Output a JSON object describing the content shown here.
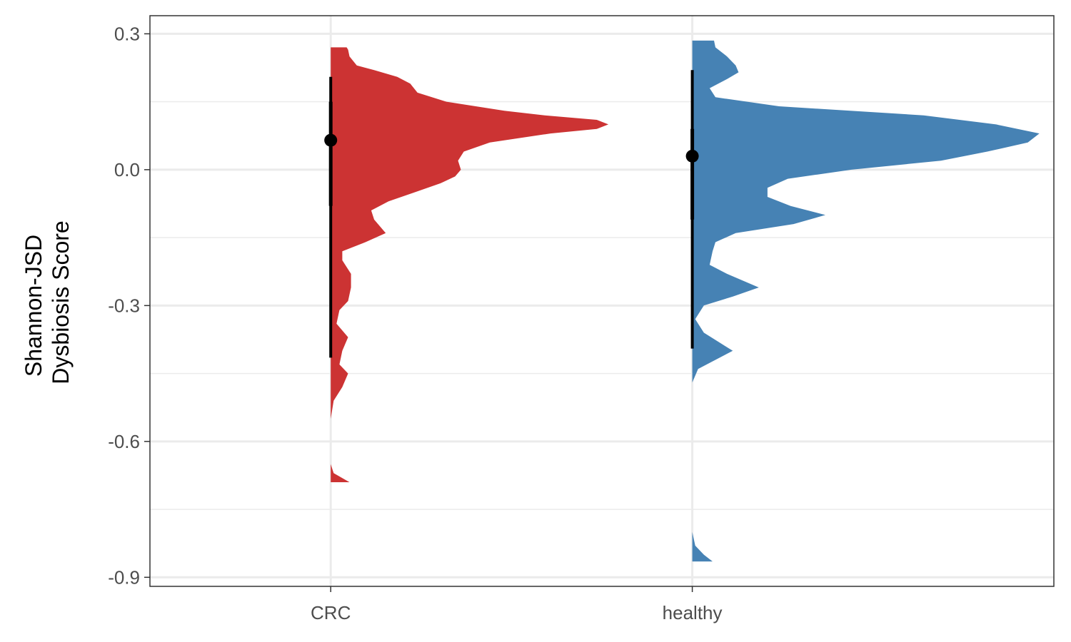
{
  "chart_data": {
    "type": "halfeye",
    "ylabel": [
      "Shannon-JSD",
      "Dysbiosis Score"
    ],
    "ylim": [
      -0.92,
      0.34
    ],
    "y_ticks": [
      0.3,
      0.0,
      -0.3,
      -0.6,
      -0.9
    ],
    "y_tick_labels": [
      "0.3",
      "0.0",
      "-0.3",
      "-0.6",
      "-0.9"
    ],
    "categories": [
      "CRC",
      "healthy"
    ],
    "groups": [
      {
        "category": "CRC",
        "color": "#CC3333",
        "median": 0.065,
        "interval_outer": [
          -0.415,
          0.205
        ],
        "interval_inner": [
          -0.08,
          0.15
        ],
        "density": [
          [
            0.27,
            0.055
          ],
          [
            0.265,
            0.06
          ],
          [
            0.25,
            0.065
          ],
          [
            0.23,
            0.09
          ],
          [
            0.22,
            0.15
          ],
          [
            0.205,
            0.23
          ],
          [
            0.19,
            0.275
          ],
          [
            0.17,
            0.3
          ],
          [
            0.15,
            0.4
          ],
          [
            0.13,
            0.6
          ],
          [
            0.12,
            0.74
          ],
          [
            0.11,
            0.92
          ],
          [
            0.1,
            0.96
          ],
          [
            0.09,
            0.92
          ],
          [
            0.08,
            0.76
          ],
          [
            0.06,
            0.55
          ],
          [
            0.04,
            0.46
          ],
          [
            0.02,
            0.44
          ],
          [
            0.0,
            0.45
          ],
          [
            -0.015,
            0.43
          ],
          [
            -0.03,
            0.38
          ],
          [
            -0.05,
            0.29
          ],
          [
            -0.07,
            0.2
          ],
          [
            -0.09,
            0.14
          ],
          [
            -0.11,
            0.15
          ],
          [
            -0.14,
            0.19
          ],
          [
            -0.16,
            0.12
          ],
          [
            -0.18,
            0.04
          ],
          [
            -0.2,
            0.04
          ],
          [
            -0.23,
            0.07
          ],
          [
            -0.26,
            0.07
          ],
          [
            -0.29,
            0.06
          ],
          [
            -0.31,
            0.03
          ],
          [
            -0.34,
            0.02
          ],
          [
            -0.37,
            0.06
          ],
          [
            -0.4,
            0.04
          ],
          [
            -0.43,
            0.03
          ],
          [
            -0.45,
            0.06
          ],
          [
            -0.48,
            0.04
          ],
          [
            -0.51,
            0.01
          ],
          [
            -0.55,
            0.0
          ],
          [
            -0.65,
            0.0
          ],
          [
            -0.67,
            0.01
          ],
          [
            -0.69,
            0.065
          ]
        ]
      },
      {
        "category": "healthy",
        "color": "#4682B4",
        "median": 0.03,
        "interval_outer": [
          -0.395,
          0.22
        ],
        "interval_inner": [
          -0.11,
          0.09
        ],
        "density": [
          [
            0.285,
            0.075
          ],
          [
            0.27,
            0.08
          ],
          [
            0.25,
            0.12
          ],
          [
            0.23,
            0.15
          ],
          [
            0.215,
            0.16
          ],
          [
            0.2,
            0.12
          ],
          [
            0.18,
            0.06
          ],
          [
            0.16,
            0.08
          ],
          [
            0.14,
            0.3
          ],
          [
            0.12,
            0.8
          ],
          [
            0.1,
            1.05
          ],
          [
            0.08,
            1.2
          ],
          [
            0.06,
            1.16
          ],
          [
            0.04,
            1.02
          ],
          [
            0.02,
            0.86
          ],
          [
            0.0,
            0.55
          ],
          [
            -0.02,
            0.33
          ],
          [
            -0.04,
            0.26
          ],
          [
            -0.06,
            0.26
          ],
          [
            -0.08,
            0.34
          ],
          [
            -0.1,
            0.46
          ],
          [
            -0.12,
            0.35
          ],
          [
            -0.14,
            0.15
          ],
          [
            -0.16,
            0.08
          ],
          [
            -0.18,
            0.07
          ],
          [
            -0.21,
            0.06
          ],
          [
            -0.23,
            0.12
          ],
          [
            -0.26,
            0.23
          ],
          [
            -0.28,
            0.14
          ],
          [
            -0.3,
            0.04
          ],
          [
            -0.33,
            0.01
          ],
          [
            -0.36,
            0.04
          ],
          [
            -0.38,
            0.09
          ],
          [
            -0.4,
            0.14
          ],
          [
            -0.42,
            0.08
          ],
          [
            -0.44,
            0.02
          ],
          [
            -0.47,
            0.0
          ],
          [
            -0.8,
            0.0
          ],
          [
            -0.83,
            0.01
          ],
          [
            -0.85,
            0.04
          ],
          [
            -0.865,
            0.07
          ]
        ]
      }
    ]
  }
}
